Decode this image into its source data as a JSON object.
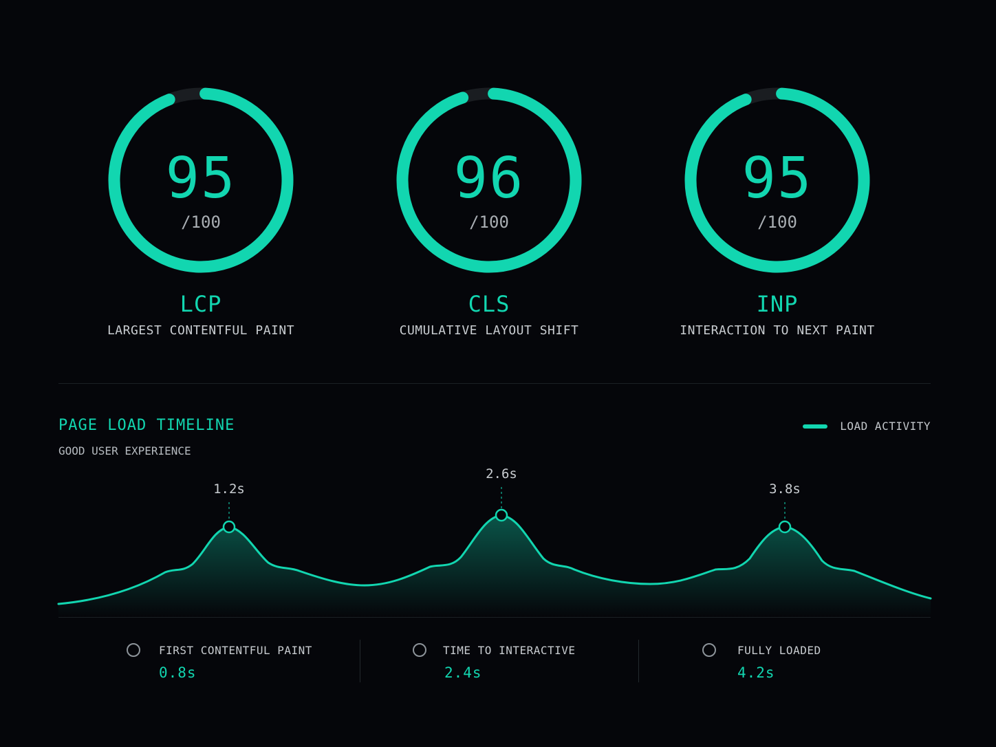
{
  "colors": {
    "accent": "#12d6b0",
    "track": "#1a1d21",
    "background": "#05060a",
    "muted_text": "#c8ccd0"
  },
  "metrics": [
    {
      "score": "95",
      "score_value": 95,
      "denominator": "/100",
      "abbr": "LCP",
      "name": "LARGEST CONTENTFUL PAINT"
    },
    {
      "score": "96",
      "score_value": 96,
      "denominator": "/100",
      "abbr": "CLS",
      "name": "CUMULATIVE LAYOUT SHIFT"
    },
    {
      "score": "95",
      "score_value": 95,
      "denominator": "/100",
      "abbr": "INP",
      "name": "INTERACTION TO NEXT PAINT"
    }
  ],
  "timeline": {
    "title": "PAGE LOAD TIMELINE",
    "subtitle": "GOOD USER EXPERIENCE",
    "legend_label": "LOAD ACTIVITY",
    "peaks": [
      {
        "label": "1.2s"
      },
      {
        "label": "2.6s"
      },
      {
        "label": "3.8s"
      }
    ]
  },
  "stats": [
    {
      "label": "FIRST CONTENTFUL PAINT",
      "value": "0.8s",
      "icon": "circle-outline-icon"
    },
    {
      "label": "TIME TO INTERACTIVE",
      "value": "2.4s",
      "icon": "circle-outline-icon"
    },
    {
      "label": "FULLY LOADED",
      "value": "4.2s",
      "icon": "circle-outline-icon"
    }
  ]
}
